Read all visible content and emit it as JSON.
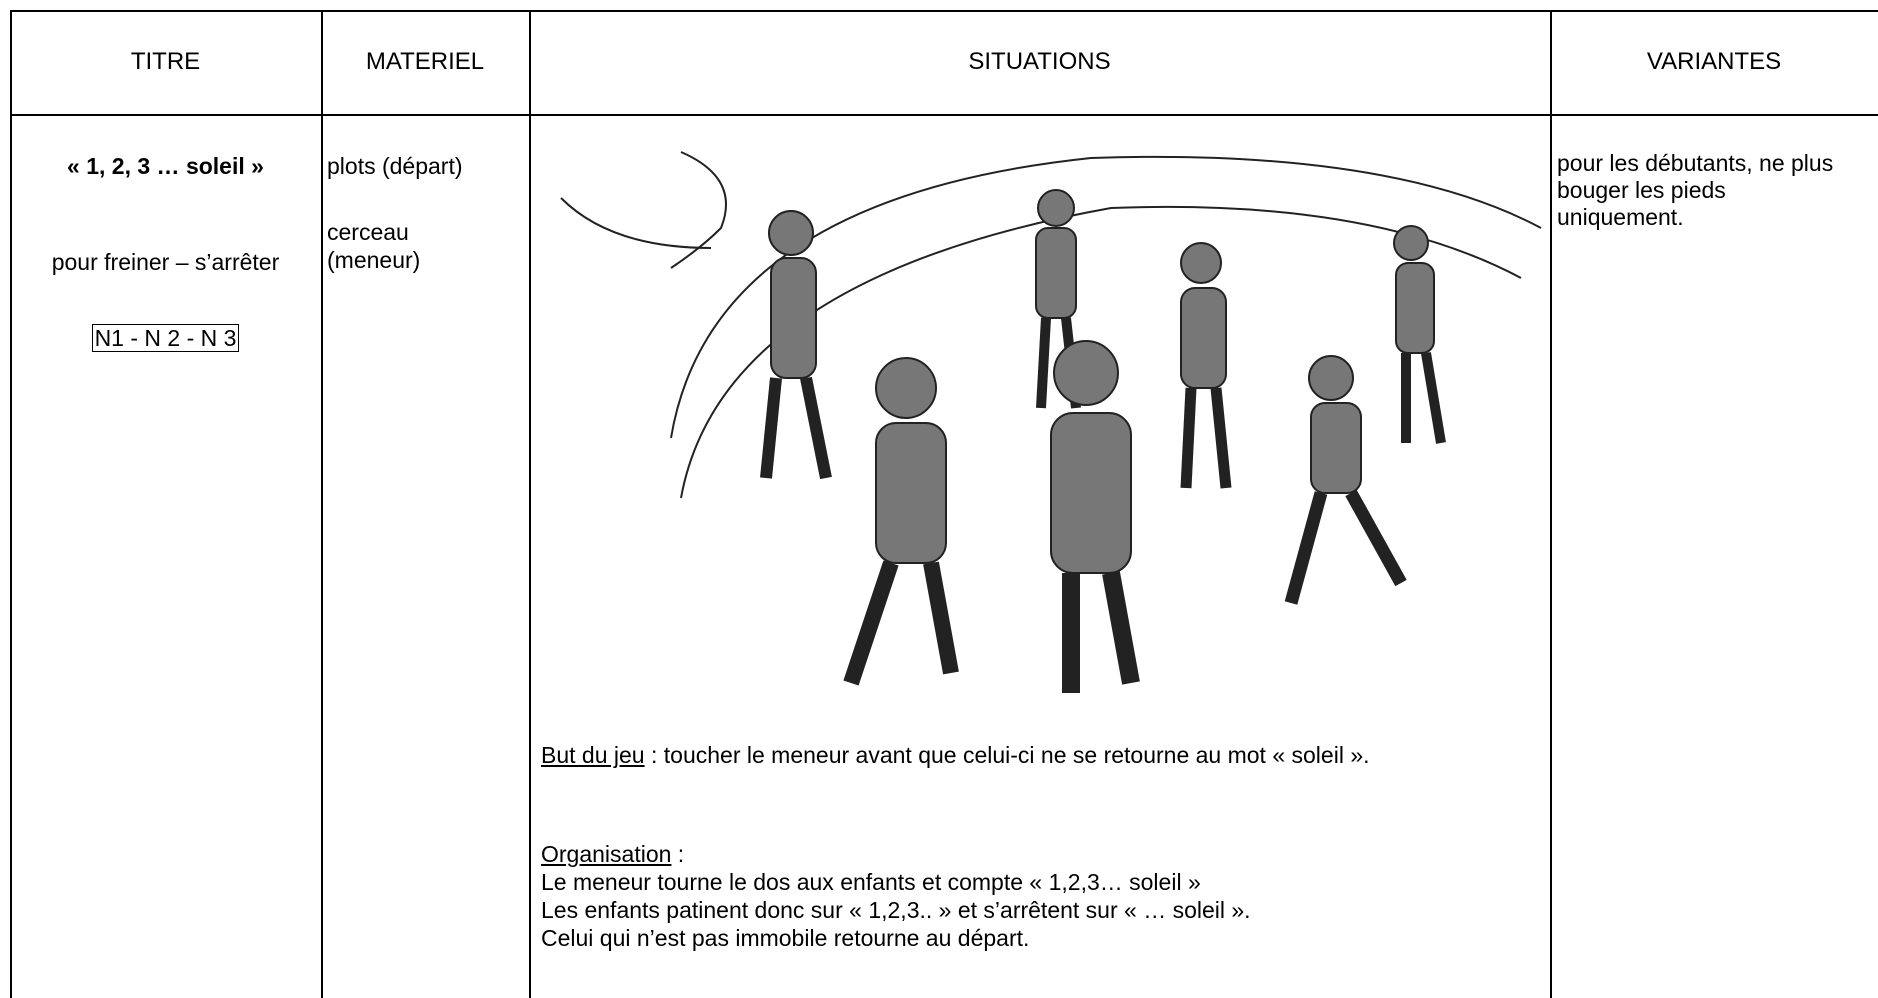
{
  "table": {
    "headers": [
      "TITRE",
      "MATERIEL",
      "SITUATIONS",
      "VARIANTES"
    ],
    "titre": {
      "name": "« 1, 2, 3 … soleil »",
      "purpose": "pour freiner – s’arrêter",
      "levels": "N1 - N 2 - N 3"
    },
    "materiel": [
      "plots (départ)",
      "cerceau (meneur)"
    ],
    "situations": {
      "goal_label": "But du jeu",
      "goal_text": " : toucher le meneur avant que celui-ci ne se retourne au mot « soleil ».",
      "organisation_label": "Organisation",
      "organisation_sep": " :",
      "organisation_lines": [
        "Le meneur tourne le dos aux enfants et compte « 1,2,3… soleil »",
        "Les enfants patinent donc sur « 1,2,3.. » et s’arrêtent sur « … soleil ».",
        "Celui qui n’est pas immobile retourne au départ."
      ]
    },
    "variantes": "pour les débutants, ne plus bouger les pieds uniquement."
  }
}
